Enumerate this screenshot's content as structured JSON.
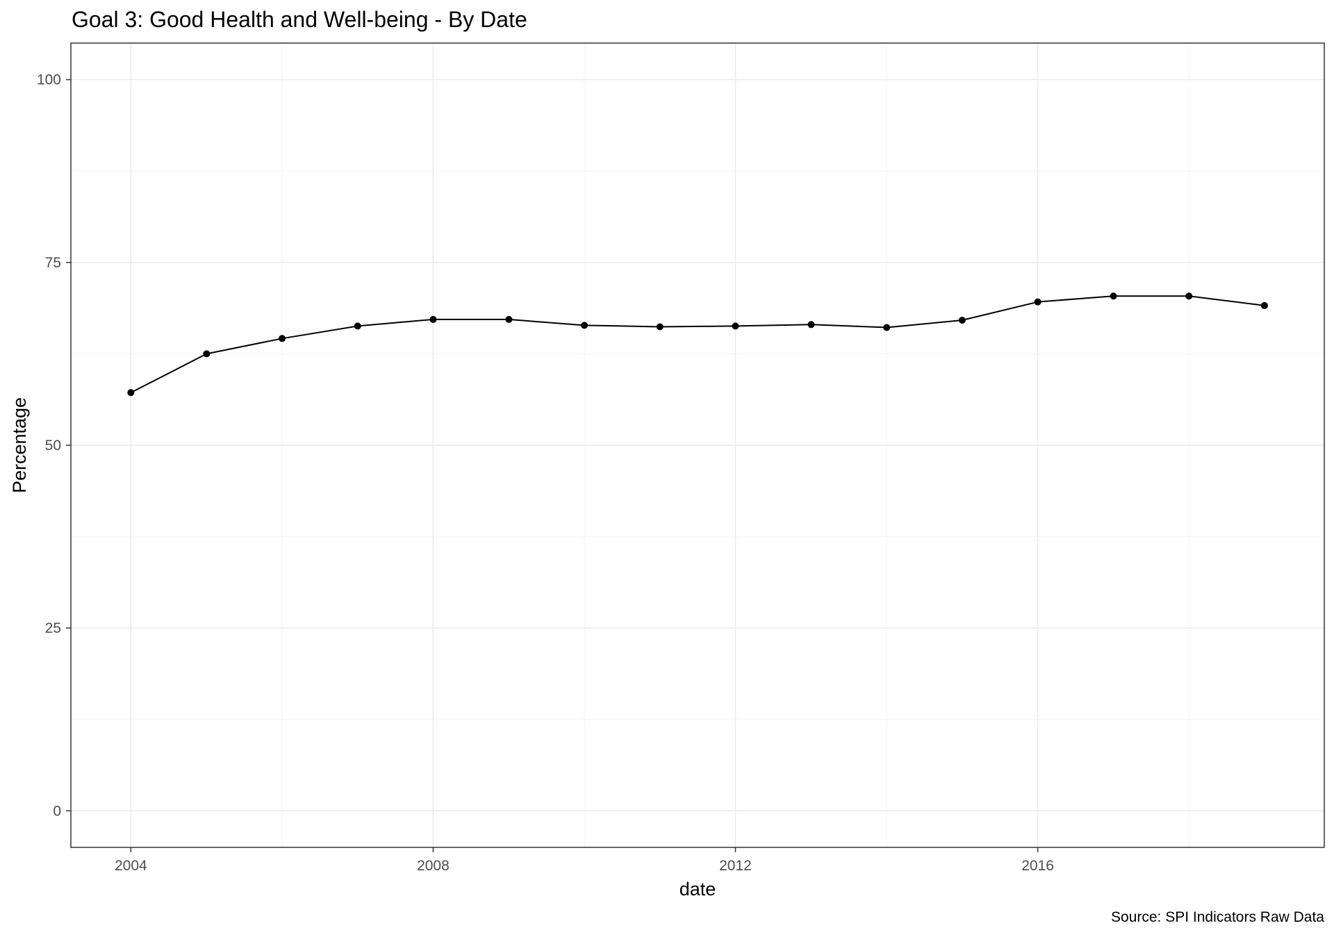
{
  "chart_data": {
    "type": "line",
    "title": "Goal 3: Good Health and Well-being - By Date",
    "xlabel": "date",
    "ylabel": "Percentage",
    "caption": "Source: SPI Indicators Raw Data",
    "x_tick_labels": [
      "2004",
      "2008",
      "2012",
      "2016"
    ],
    "y_tick_labels": [
      "0",
      "25",
      "50",
      "75",
      "100"
    ],
    "xlim": [
      "2003-03-17",
      "2019-10-17"
    ],
    "ylim": [
      -5,
      105
    ],
    "grid": true,
    "legend": "none",
    "series": [
      {
        "x": [
          "2004-01-01",
          "2005-01-01",
          "2006-01-01",
          "2007-01-01",
          "2008-01-01",
          "2009-01-01",
          "2010-01-01",
          "2011-01-01",
          "2012-01-01",
          "2013-01-01",
          "2014-01-01",
          "2015-01-01",
          "2016-01-01",
          "2017-01-01",
          "2018-01-01",
          "2019-01-01"
        ],
        "values": [
          57.2,
          62.5,
          64.6,
          66.3,
          67.2,
          67.2,
          66.4,
          66.2,
          66.3,
          66.5,
          66.1,
          67.1,
          69.6,
          70.4,
          70.4,
          69.1
        ],
        "color": "#000000"
      }
    ],
    "colors": {
      "panel_border": "#333333",
      "grid_major": "#ebebeb",
      "grid_minor": "#f5f5f5",
      "tick_text": "#4d4d4d",
      "text": "#000000"
    }
  }
}
